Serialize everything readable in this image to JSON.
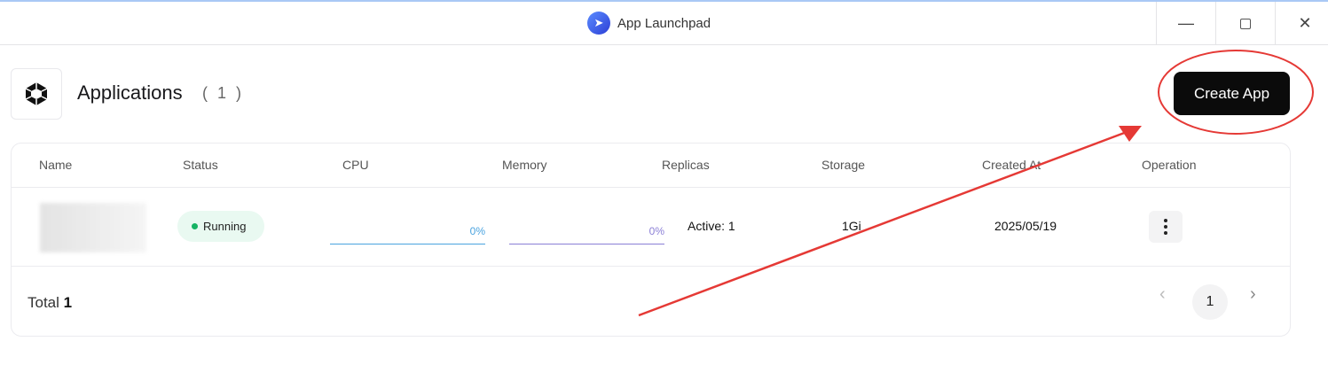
{
  "window": {
    "title": "App Launchpad",
    "icon": "rocket-icon"
  },
  "header": {
    "title": "Applications",
    "count": "( 1 )",
    "icon": "hexagon-gem-icon",
    "create_label": "Create App"
  },
  "table": {
    "columns": [
      "Name",
      "Status",
      "CPU",
      "Memory",
      "Replicas",
      "Storage",
      "Created At",
      "Operation"
    ],
    "rows": [
      {
        "name": "",
        "status": "Running",
        "cpu": "0%",
        "memory": "0%",
        "replicas": "Active: 1",
        "storage": "1Gi",
        "created_at": "2025/05/19"
      }
    ]
  },
  "footer": {
    "total_label": "Total",
    "total_value": "1",
    "page": "1"
  },
  "colors": {
    "accent": "#0b0b0b",
    "running": "#16b364",
    "cpu_bar": "#4aa3df",
    "memory_bar": "#8b7fd6",
    "annotation": "#e53935"
  }
}
